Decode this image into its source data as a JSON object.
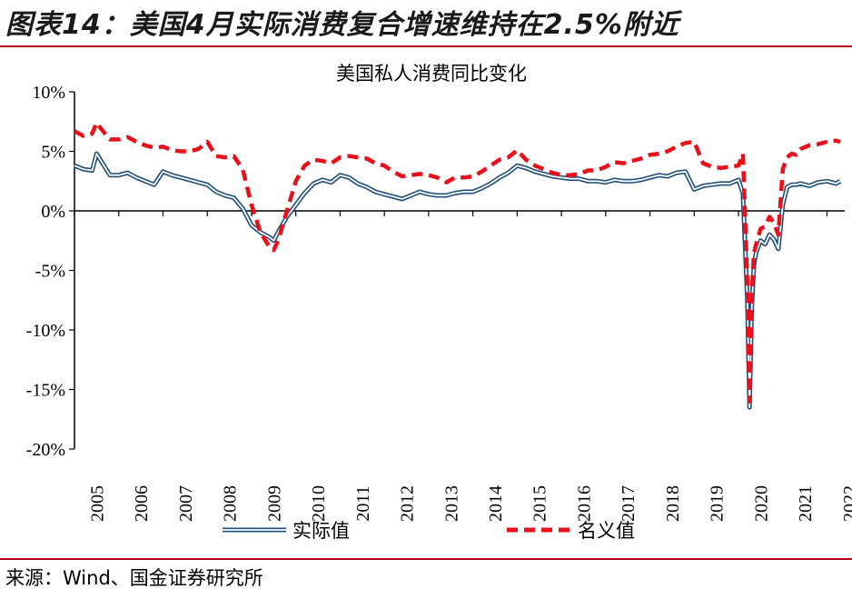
{
  "figure_title": "图表14：美国4月实际消费复合增速维持在2.5%附近",
  "source": "来源：Wind、国金证券研究所",
  "colors": {
    "real": "#1f4e79",
    "real_inner": "#ffffff",
    "nominal": "#e8101a",
    "accent": "#b5001d"
  },
  "chart_data": {
    "type": "line",
    "title": "美国私人消费同比变化",
    "xlabel": "",
    "ylabel": "",
    "ylim": [
      -20,
      10
    ],
    "xlim": [
      2005.0,
      2022.4
    ],
    "grid": false,
    "legend": "bottom",
    "yticks": [
      {
        "value": 10,
        "label": "10%"
      },
      {
        "value": 5,
        "label": "5%"
      },
      {
        "value": 0,
        "label": "0%"
      },
      {
        "value": -5,
        "label": "-5%"
      },
      {
        "value": -10,
        "label": "-10%"
      },
      {
        "value": -15,
        "label": "-15%"
      },
      {
        "value": -20,
        "label": "-20%"
      }
    ],
    "xticks": [
      "2005",
      "2006",
      "2007",
      "2008",
      "2009",
      "2010",
      "2011",
      "2012",
      "2013",
      "2014",
      "2015",
      "2016",
      "2017",
      "2018",
      "2019",
      "2020",
      "2021",
      "2022"
    ],
    "series": [
      {
        "name": "实际值",
        "style": "double-line",
        "x": [
          2005.0,
          2005.2,
          2005.4,
          2005.5,
          2005.6,
          2005.8,
          2006.0,
          2006.2,
          2006.4,
          2006.6,
          2006.8,
          2007.0,
          2007.2,
          2007.4,
          2007.6,
          2007.8,
          2008.0,
          2008.2,
          2008.4,
          2008.6,
          2008.8,
          2009.0,
          2009.2,
          2009.4,
          2009.5,
          2009.6,
          2009.8,
          2010.0,
          2010.2,
          2010.4,
          2010.6,
          2010.8,
          2011.0,
          2011.2,
          2011.4,
          2011.6,
          2011.8,
          2012.0,
          2012.2,
          2012.4,
          2012.6,
          2012.8,
          2013.0,
          2013.2,
          2013.4,
          2013.6,
          2013.8,
          2014.0,
          2014.2,
          2014.4,
          2014.6,
          2014.8,
          2015.0,
          2015.2,
          2015.4,
          2015.6,
          2015.8,
          2016.0,
          2016.2,
          2016.4,
          2016.6,
          2016.8,
          2017.0,
          2017.2,
          2017.4,
          2017.6,
          2017.8,
          2018.0,
          2018.2,
          2018.4,
          2018.6,
          2018.8,
          2019.0,
          2019.2,
          2019.4,
          2019.6,
          2019.8,
          2020.0,
          2020.1,
          2020.2,
          2020.25,
          2020.3,
          2020.35,
          2020.4,
          2020.5,
          2020.6,
          2020.7,
          2020.8,
          2020.9,
          2021.0,
          2021.1,
          2021.2,
          2021.3,
          2021.4,
          2021.6,
          2021.8,
          2022.0,
          2022.2,
          2022.3
        ],
        "values": [
          3.8,
          3.5,
          3.4,
          4.8,
          4.2,
          3.0,
          3.0,
          3.2,
          2.8,
          2.5,
          2.2,
          3.3,
          3.0,
          2.8,
          2.6,
          2.4,
          2.2,
          1.6,
          1.3,
          1.1,
          0.2,
          -1.2,
          -1.8,
          -2.2,
          -2.5,
          -1.8,
          -0.5,
          0.5,
          1.5,
          2.3,
          2.6,
          2.4,
          3.0,
          2.8,
          2.3,
          2.0,
          1.6,
          1.4,
          1.2,
          1.0,
          1.3,
          1.6,
          1.4,
          1.3,
          1.3,
          1.5,
          1.6,
          1.6,
          1.9,
          2.3,
          2.8,
          3.2,
          3.8,
          3.6,
          3.3,
          3.1,
          2.9,
          2.8,
          2.7,
          2.7,
          2.5,
          2.5,
          2.4,
          2.6,
          2.5,
          2.5,
          2.6,
          2.8,
          3.0,
          2.9,
          3.2,
          3.3,
          1.8,
          2.1,
          2.2,
          2.3,
          2.3,
          2.6,
          1.5,
          -7.5,
          -16.5,
          -8.0,
          -4.5,
          -3.5,
          -2.5,
          -2.8,
          -2.0,
          -2.4,
          -3.2,
          0.5,
          2.0,
          2.2,
          2.2,
          2.3,
          2.1,
          2.4,
          2.5,
          2.3,
          2.5
        ]
      },
      {
        "name": "名义值",
        "style": "dashed",
        "x": [
          2005.0,
          2005.2,
          2005.4,
          2005.5,
          2005.6,
          2005.8,
          2006.0,
          2006.2,
          2006.4,
          2006.6,
          2006.8,
          2007.0,
          2007.2,
          2007.4,
          2007.6,
          2007.8,
          2008.0,
          2008.2,
          2008.4,
          2008.6,
          2008.8,
          2009.0,
          2009.2,
          2009.4,
          2009.5,
          2009.6,
          2009.8,
          2010.0,
          2010.2,
          2010.4,
          2010.6,
          2010.8,
          2011.0,
          2011.2,
          2011.4,
          2011.6,
          2011.8,
          2012.0,
          2012.2,
          2012.4,
          2012.6,
          2012.8,
          2013.0,
          2013.2,
          2013.4,
          2013.6,
          2013.8,
          2014.0,
          2014.2,
          2014.4,
          2014.6,
          2014.8,
          2015.0,
          2015.2,
          2015.4,
          2015.6,
          2015.8,
          2016.0,
          2016.2,
          2016.4,
          2016.6,
          2016.8,
          2017.0,
          2017.2,
          2017.4,
          2017.6,
          2017.8,
          2018.0,
          2018.2,
          2018.4,
          2018.6,
          2018.8,
          2019.0,
          2019.2,
          2019.4,
          2019.6,
          2019.8,
          2020.0,
          2020.1,
          2020.2,
          2020.25,
          2020.3,
          2020.35,
          2020.4,
          2020.5,
          2020.6,
          2020.7,
          2020.8,
          2020.9,
          2021.0,
          2021.1,
          2021.2,
          2021.3,
          2021.4,
          2021.6,
          2021.8,
          2022.0,
          2022.2,
          2022.3
        ],
        "values": [
          6.7,
          6.3,
          6.5,
          7.4,
          6.9,
          6.0,
          6.0,
          6.2,
          5.8,
          5.5,
          5.3,
          5.4,
          5.1,
          5.0,
          5.0,
          5.2,
          5.8,
          4.6,
          4.5,
          4.6,
          3.5,
          0.5,
          -1.8,
          -3.0,
          -3.3,
          -2.5,
          0.0,
          2.5,
          3.8,
          4.3,
          4.2,
          4.0,
          4.5,
          4.6,
          4.5,
          4.4,
          4.0,
          3.8,
          3.3,
          2.9,
          3.0,
          3.1,
          3.0,
          2.8,
          2.4,
          2.8,
          2.8,
          2.9,
          3.3,
          3.8,
          4.3,
          4.5,
          5.1,
          4.3,
          3.8,
          3.5,
          3.2,
          3.0,
          3.0,
          3.1,
          3.4,
          3.4,
          3.7,
          4.1,
          4.0,
          4.2,
          4.4,
          4.7,
          4.8,
          5.0,
          5.4,
          5.7,
          5.8,
          4.0,
          3.7,
          3.6,
          3.7,
          3.8,
          4.8,
          -6.0,
          -16.0,
          -7.0,
          -3.5,
          -2.8,
          -1.5,
          -1.3,
          -0.5,
          -1.0,
          -2.0,
          3.5,
          4.5,
          4.8,
          4.7,
          5.2,
          5.5,
          5.6,
          5.8,
          5.9,
          5.8
        ]
      }
    ]
  }
}
